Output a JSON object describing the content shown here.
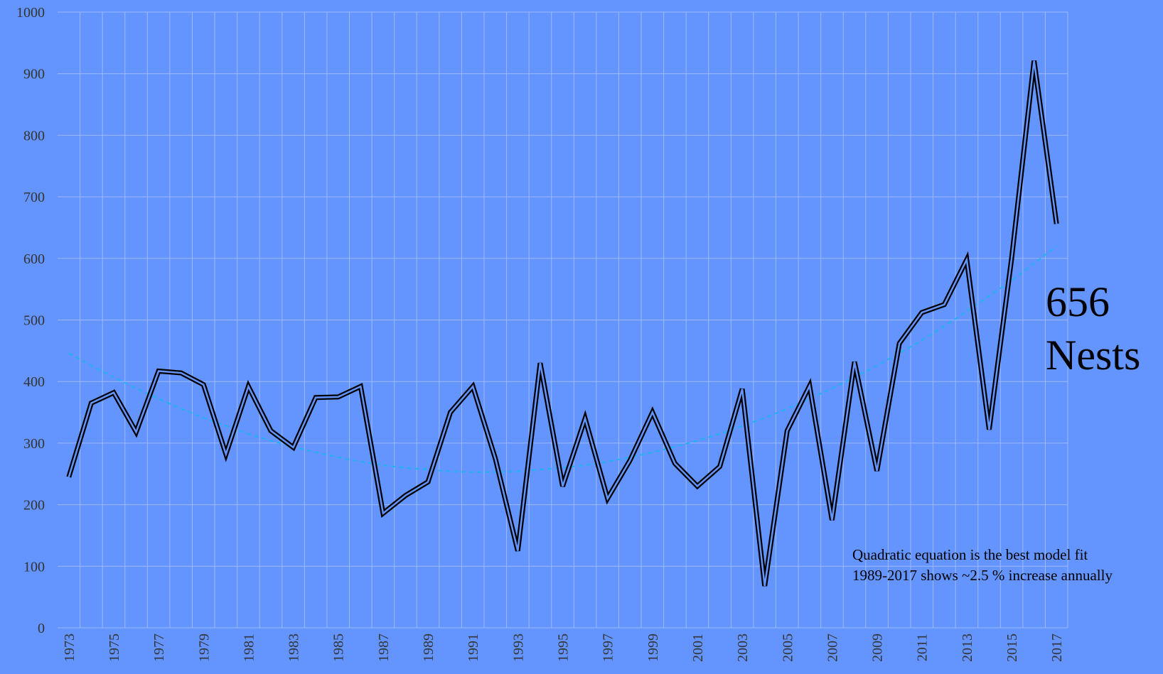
{
  "chart_data": {
    "type": "line",
    "categories": [
      "1973",
      null,
      "1975",
      null,
      "1977",
      null,
      "1979",
      null,
      "1981",
      null,
      "1983",
      null,
      "1985",
      null,
      "1987",
      null,
      "1989",
      null,
      "1991",
      null,
      "1993",
      null,
      "1995",
      null,
      "1997",
      null,
      "1999",
      null,
      "2001",
      null,
      "2003",
      null,
      "2005",
      null,
      "2007",
      null,
      "2009",
      null,
      "2011",
      null,
      "2013",
      null,
      "2015",
      null,
      "2017"
    ],
    "series": [
      {
        "color": "#000000",
        "values": [
          245,
          365,
          382,
          318,
          417,
          414,
          395,
          282,
          392,
          320,
          293,
          374,
          375,
          392,
          186,
          215,
          237,
          350,
          392,
          275,
          125,
          430,
          230,
          340,
          210,
          272,
          350,
          267,
          230,
          262,
          388,
          68,
          320,
          393,
          175,
          432,
          255,
          462,
          512,
          525,
          598,
          322,
          600,
          921,
          656
        ]
      },
      {
        "color": "#1fb3ee",
        "dashed": true,
        "values": [
          446,
          426,
          407,
          389,
          372,
          356,
          341,
          328,
          315,
          304,
          294,
          285,
          277,
          270,
          264,
          260,
          257,
          254,
          253,
          253,
          254,
          257,
          260,
          264,
          270,
          277,
          285,
          294,
          304,
          315,
          328,
          341,
          356,
          372,
          389,
          407,
          426,
          446,
          467,
          490,
          514,
          539,
          564,
          592,
          620
        ]
      }
    ],
    "ylim": [
      0,
      1000
    ],
    "yticks": [
      0,
      100,
      200,
      300,
      400,
      500,
      600,
      700,
      800,
      900,
      1000
    ],
    "grid": true,
    "annotations": [
      "656",
      "Nests",
      "Quadratic equation is the best model fit",
      "1989-2017 shows ~2.5 % increase annually"
    ]
  }
}
